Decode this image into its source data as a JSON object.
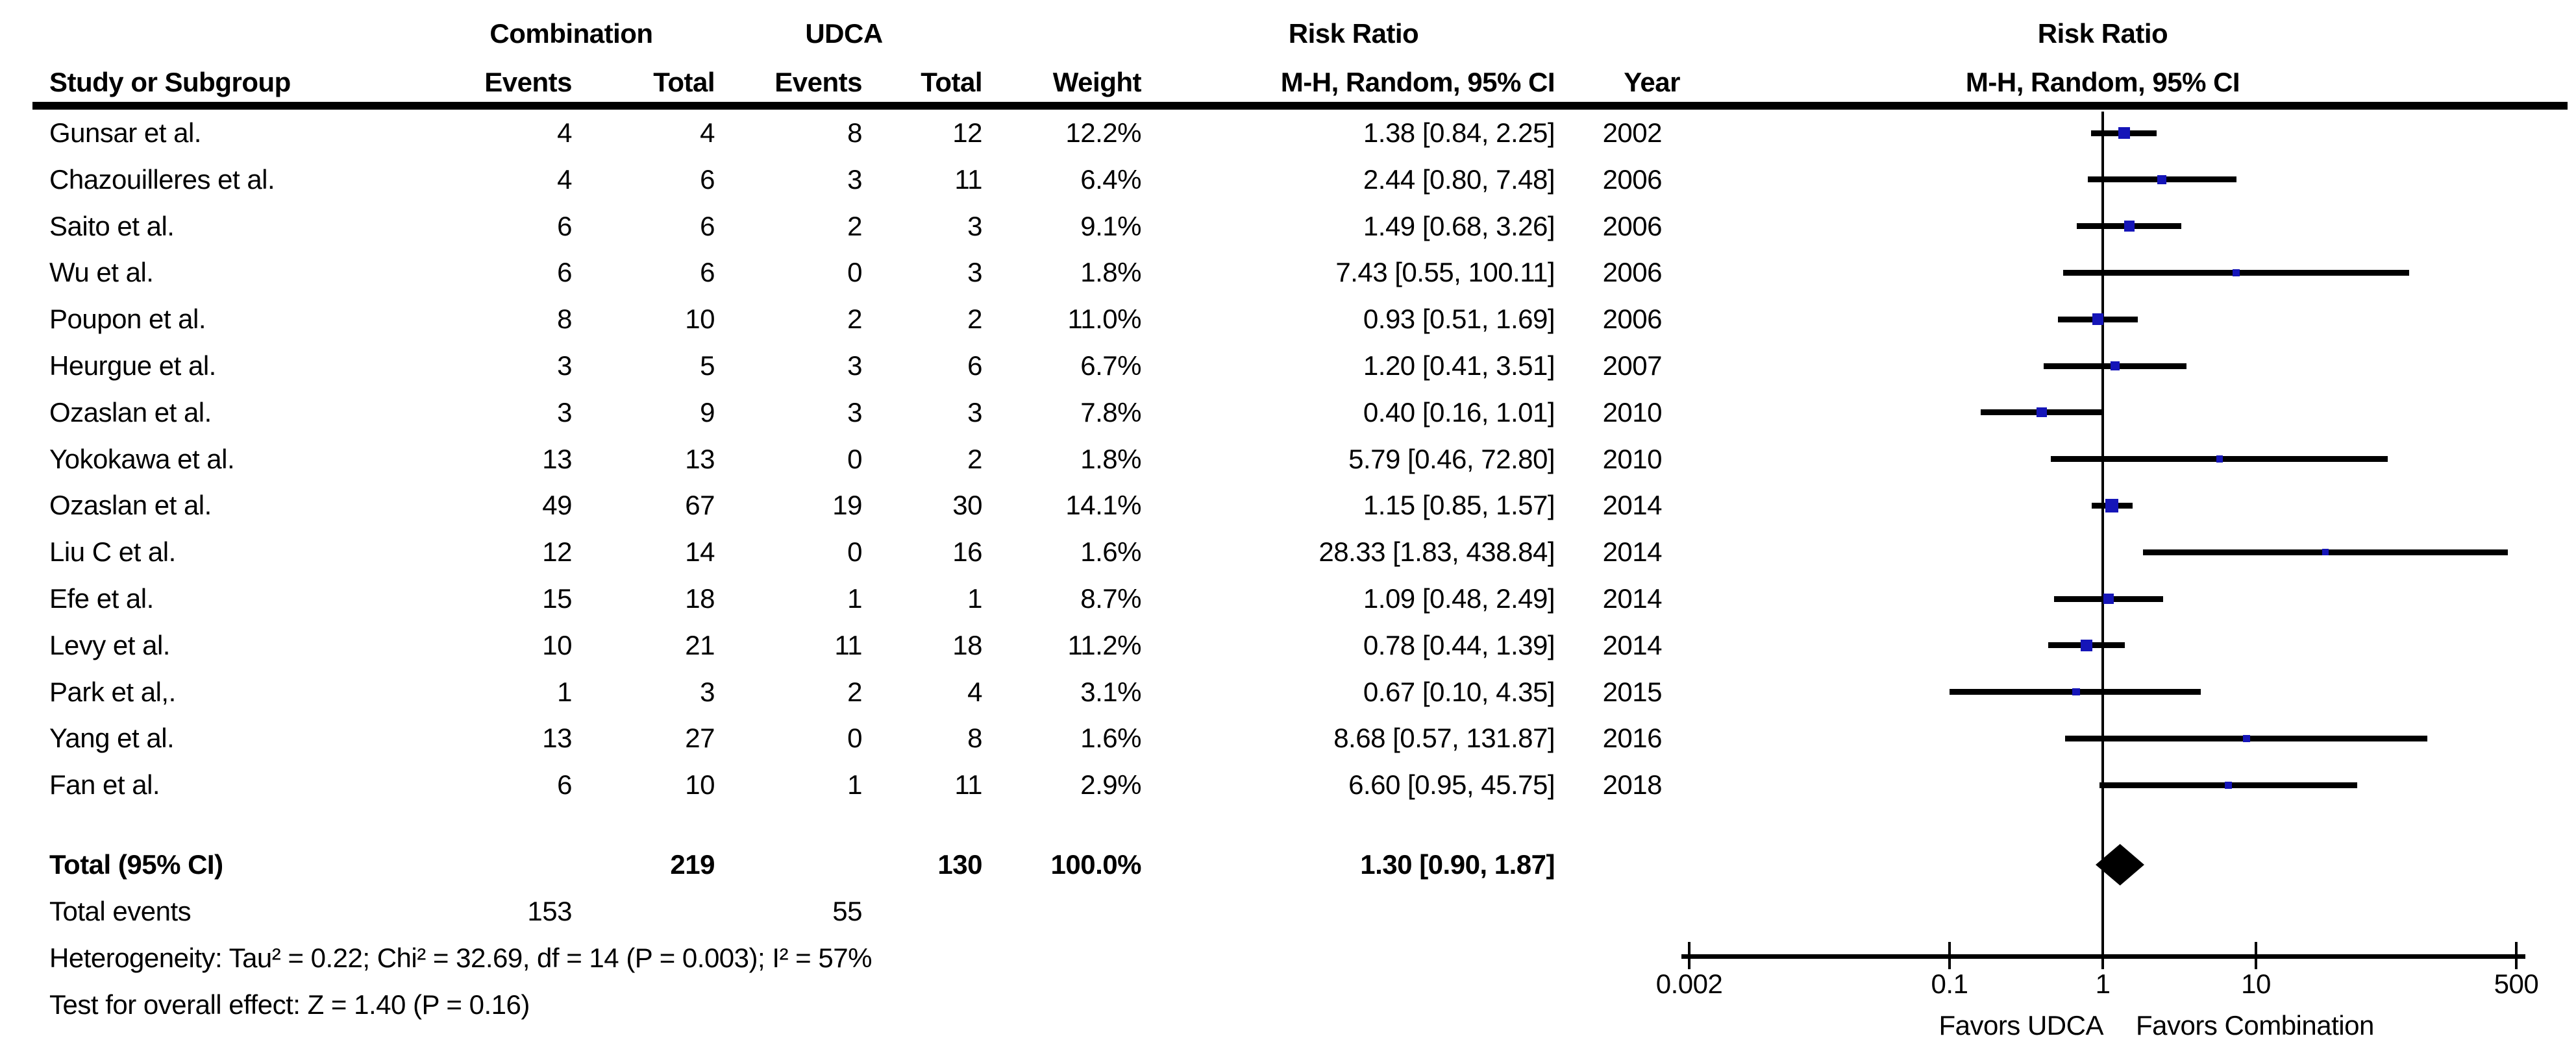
{
  "table": {
    "group_headers": {
      "combination": "Combination",
      "udca": "UDCA",
      "risk_ratio": "Risk Ratio",
      "method": "M-H, Random, 95% CI"
    },
    "columns": {
      "study": "Study or Subgroup",
      "events": "Events",
      "total": "Total",
      "events2": "Events",
      "total2": "Total",
      "weight": "Weight",
      "risk_ratio_ci": "M-H, Random, 95% CI",
      "year": "Year"
    },
    "rows": [
      {
        "study": "Gunsar et al.",
        "comb_events": "4",
        "comb_total": "4",
        "udca_events": "8",
        "udca_total": "12",
        "weight": "12.2%",
        "risk_ratio_ci": "1.38 [0.84, 2.25]",
        "year": "2002"
      },
      {
        "study": "Chazouilleres et al.",
        "comb_events": "4",
        "comb_total": "6",
        "udca_events": "3",
        "udca_total": "11",
        "weight": "6.4%",
        "risk_ratio_ci": "2.44 [0.80, 7.48]",
        "year": "2006"
      },
      {
        "study": "Saito et al.",
        "comb_events": "6",
        "comb_total": "6",
        "udca_events": "2",
        "udca_total": "3",
        "weight": "9.1%",
        "risk_ratio_ci": "1.49 [0.68, 3.26]",
        "year": "2006"
      },
      {
        "study": "Wu et al.",
        "comb_events": "6",
        "comb_total": "6",
        "udca_events": "0",
        "udca_total": "3",
        "weight": "1.8%",
        "risk_ratio_ci": "7.43 [0.55, 100.11]",
        "year": "2006"
      },
      {
        "study": "Poupon et al.",
        "comb_events": "8",
        "comb_total": "10",
        "udca_events": "2",
        "udca_total": "2",
        "weight": "11.0%",
        "risk_ratio_ci": "0.93 [0.51, 1.69]",
        "year": "2006"
      },
      {
        "study": "Heurgue et al.",
        "comb_events": "3",
        "comb_total": "5",
        "udca_events": "3",
        "udca_total": "6",
        "weight": "6.7%",
        "risk_ratio_ci": "1.20 [0.41, 3.51]",
        "year": "2007"
      },
      {
        "study": "Ozaslan et al.",
        "comb_events": "3",
        "comb_total": "9",
        "udca_events": "3",
        "udca_total": "3",
        "weight": "7.8%",
        "risk_ratio_ci": "0.40 [0.16, 1.01]",
        "year": "2010"
      },
      {
        "study": "Yokokawa et al.",
        "comb_events": "13",
        "comb_total": "13",
        "udca_events": "0",
        "udca_total": "2",
        "weight": "1.8%",
        "risk_ratio_ci": "5.79 [0.46, 72.80]",
        "year": "2010"
      },
      {
        "study": "Ozaslan et al.",
        "comb_events": "49",
        "comb_total": "67",
        "udca_events": "19",
        "udca_total": "30",
        "weight": "14.1%",
        "risk_ratio_ci": "1.15 [0.85, 1.57]",
        "year": "2014"
      },
      {
        "study": "Liu C et al.",
        "comb_events": "12",
        "comb_total": "14",
        "udca_events": "0",
        "udca_total": "16",
        "weight": "1.6%",
        "risk_ratio_ci": "28.33 [1.83, 438.84]",
        "year": "2014"
      },
      {
        "study": "Efe et al.",
        "comb_events": "15",
        "comb_total": "18",
        "udca_events": "1",
        "udca_total": "1",
        "weight": "8.7%",
        "risk_ratio_ci": "1.09 [0.48, 2.49]",
        "year": "2014"
      },
      {
        "study": "Levy et al.",
        "comb_events": "10",
        "comb_total": "21",
        "udca_events": "11",
        "udca_total": "18",
        "weight": "11.2%",
        "risk_ratio_ci": "0.78 [0.44, 1.39]",
        "year": "2014"
      },
      {
        "study": "Park et al,.",
        "comb_events": "1",
        "comb_total": "3",
        "udca_events": "2",
        "udca_total": "4",
        "weight": "3.1%",
        "risk_ratio_ci": "0.67 [0.10, 4.35]",
        "year": "2015"
      },
      {
        "study": "Yang et al.",
        "comb_events": "13",
        "comb_total": "27",
        "udca_events": "0",
        "udca_total": "8",
        "weight": "1.6%",
        "risk_ratio_ci": "8.68 [0.57, 131.87]",
        "year": "2016"
      },
      {
        "study": "Fan et al.",
        "comb_events": "6",
        "comb_total": "10",
        "udca_events": "1",
        "udca_total": "11",
        "weight": "2.9%",
        "risk_ratio_ci": "6.60 [0.95, 45.75]",
        "year": "2018"
      }
    ],
    "total_row": {
      "label": "Total (95% CI)",
      "comb_total": "219",
      "udca_total": "130",
      "weight": "100.0%",
      "risk_ratio_ci": "1.30 [0.90, 1.87]"
    },
    "total_events_row": {
      "label": "Total events",
      "comb_events": "153",
      "udca_events": "55"
    },
    "heterogeneity": "Heterogeneity: Tau² = 0.22; Chi² = 32.69, df = 14 (P = 0.003); I² = 57%",
    "overall_effect": "Test for overall effect: Z = 1.40 (P = 0.16)"
  },
  "chart_data": {
    "type": "forest",
    "title": "Risk Ratio",
    "method_label": "M-H, Random, 95% CI",
    "x_scale": "log10",
    "xlim": [
      0.002,
      500
    ],
    "null_line": 1,
    "x_ticks": [
      0.002,
      0.1,
      1,
      10,
      500
    ],
    "x_tick_labels": [
      "0.002",
      "0.1",
      "1",
      "10",
      "500"
    ],
    "favors_left": "Favors UDCA",
    "favors_right": "Favors Combination",
    "marker_color": "#1515b8",
    "line_color": "#000000",
    "studies": [
      {
        "name": "Gunsar et al.",
        "year": 2002,
        "rr": 1.38,
        "ci_low": 0.84,
        "ci_high": 2.25,
        "weight_pct": 12.2
      },
      {
        "name": "Chazouilleres et al.",
        "year": 2006,
        "rr": 2.44,
        "ci_low": 0.8,
        "ci_high": 7.48,
        "weight_pct": 6.4
      },
      {
        "name": "Saito et al.",
        "year": 2006,
        "rr": 1.49,
        "ci_low": 0.68,
        "ci_high": 3.26,
        "weight_pct": 9.1
      },
      {
        "name": "Wu et al.",
        "year": 2006,
        "rr": 7.43,
        "ci_low": 0.55,
        "ci_high": 100.11,
        "weight_pct": 1.8
      },
      {
        "name": "Poupon et al.",
        "year": 2006,
        "rr": 0.93,
        "ci_low": 0.51,
        "ci_high": 1.69,
        "weight_pct": 11.0
      },
      {
        "name": "Heurgue et al.",
        "year": 2007,
        "rr": 1.2,
        "ci_low": 0.41,
        "ci_high": 3.51,
        "weight_pct": 6.7
      },
      {
        "name": "Ozaslan et al.",
        "year": 2010,
        "rr": 0.4,
        "ci_low": 0.16,
        "ci_high": 1.01,
        "weight_pct": 7.8
      },
      {
        "name": "Yokokawa et al.",
        "year": 2010,
        "rr": 5.79,
        "ci_low": 0.46,
        "ci_high": 72.8,
        "weight_pct": 1.8
      },
      {
        "name": "Ozaslan et al.",
        "year": 2014,
        "rr": 1.15,
        "ci_low": 0.85,
        "ci_high": 1.57,
        "weight_pct": 14.1
      },
      {
        "name": "Liu C et al.",
        "year": 2014,
        "rr": 28.33,
        "ci_low": 1.83,
        "ci_high": 438.84,
        "weight_pct": 1.6
      },
      {
        "name": "Efe et al.",
        "year": 2014,
        "rr": 1.09,
        "ci_low": 0.48,
        "ci_high": 2.49,
        "weight_pct": 8.7
      },
      {
        "name": "Levy et al.",
        "year": 2014,
        "rr": 0.78,
        "ci_low": 0.44,
        "ci_high": 1.39,
        "weight_pct": 11.2
      },
      {
        "name": "Park et al,.",
        "year": 2015,
        "rr": 0.67,
        "ci_low": 0.1,
        "ci_high": 4.35,
        "weight_pct": 3.1
      },
      {
        "name": "Yang et al.",
        "year": 2016,
        "rr": 8.68,
        "ci_low": 0.57,
        "ci_high": 131.87,
        "weight_pct": 1.6
      },
      {
        "name": "Fan et al.",
        "year": 2018,
        "rr": 6.6,
        "ci_low": 0.95,
        "ci_high": 45.75,
        "weight_pct": 2.9
      }
    ],
    "overall": {
      "label": "Total (95% CI)",
      "rr": 1.3,
      "ci_low": 0.9,
      "ci_high": 1.87
    }
  }
}
